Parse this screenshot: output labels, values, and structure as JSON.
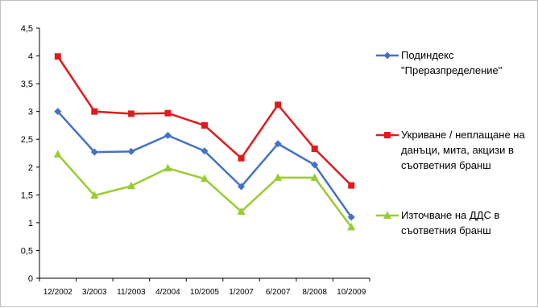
{
  "chart_data": {
    "type": "line",
    "title": "",
    "xlabel": "",
    "ylabel": "",
    "categories": [
      "12/2002",
      "3/2003",
      "11/2003",
      "4/2004",
      "10/2005",
      "1/2007",
      "6/2007",
      "8/2008",
      "10/2009"
    ],
    "ylim": [
      0,
      4.5
    ],
    "yticks": [
      "0",
      "0,5",
      "1",
      "1,5",
      "2",
      "2,5",
      "3",
      "3,5",
      "4",
      "4,5"
    ],
    "grid": false,
    "legend_position": "right",
    "series": [
      {
        "name_lines": [
          "Подиндекс",
          "\"Преразпределение\""
        ],
        "color": "#4472c4",
        "marker": "diamond",
        "values": [
          3.0,
          2.27,
          2.28,
          2.57,
          2.29,
          1.65,
          2.42,
          2.04,
          1.1
        ]
      },
      {
        "name_lines": [
          "Укриване / неплащане на",
          "данъци, мита, акцизи в",
          "съответния бранш"
        ],
        "color": "#e31a1c",
        "marker": "square",
        "values": [
          3.99,
          3.0,
          2.96,
          2.97,
          2.75,
          2.16,
          3.12,
          2.33,
          1.67
        ]
      },
      {
        "name_lines": [
          "Източване на ДДС в",
          "съответния бранш"
        ],
        "color": "#99cc33",
        "marker": "triangle",
        "values": [
          2.23,
          1.49,
          1.66,
          1.98,
          1.79,
          1.2,
          1.81,
          1.81,
          0.92
        ]
      }
    ]
  }
}
